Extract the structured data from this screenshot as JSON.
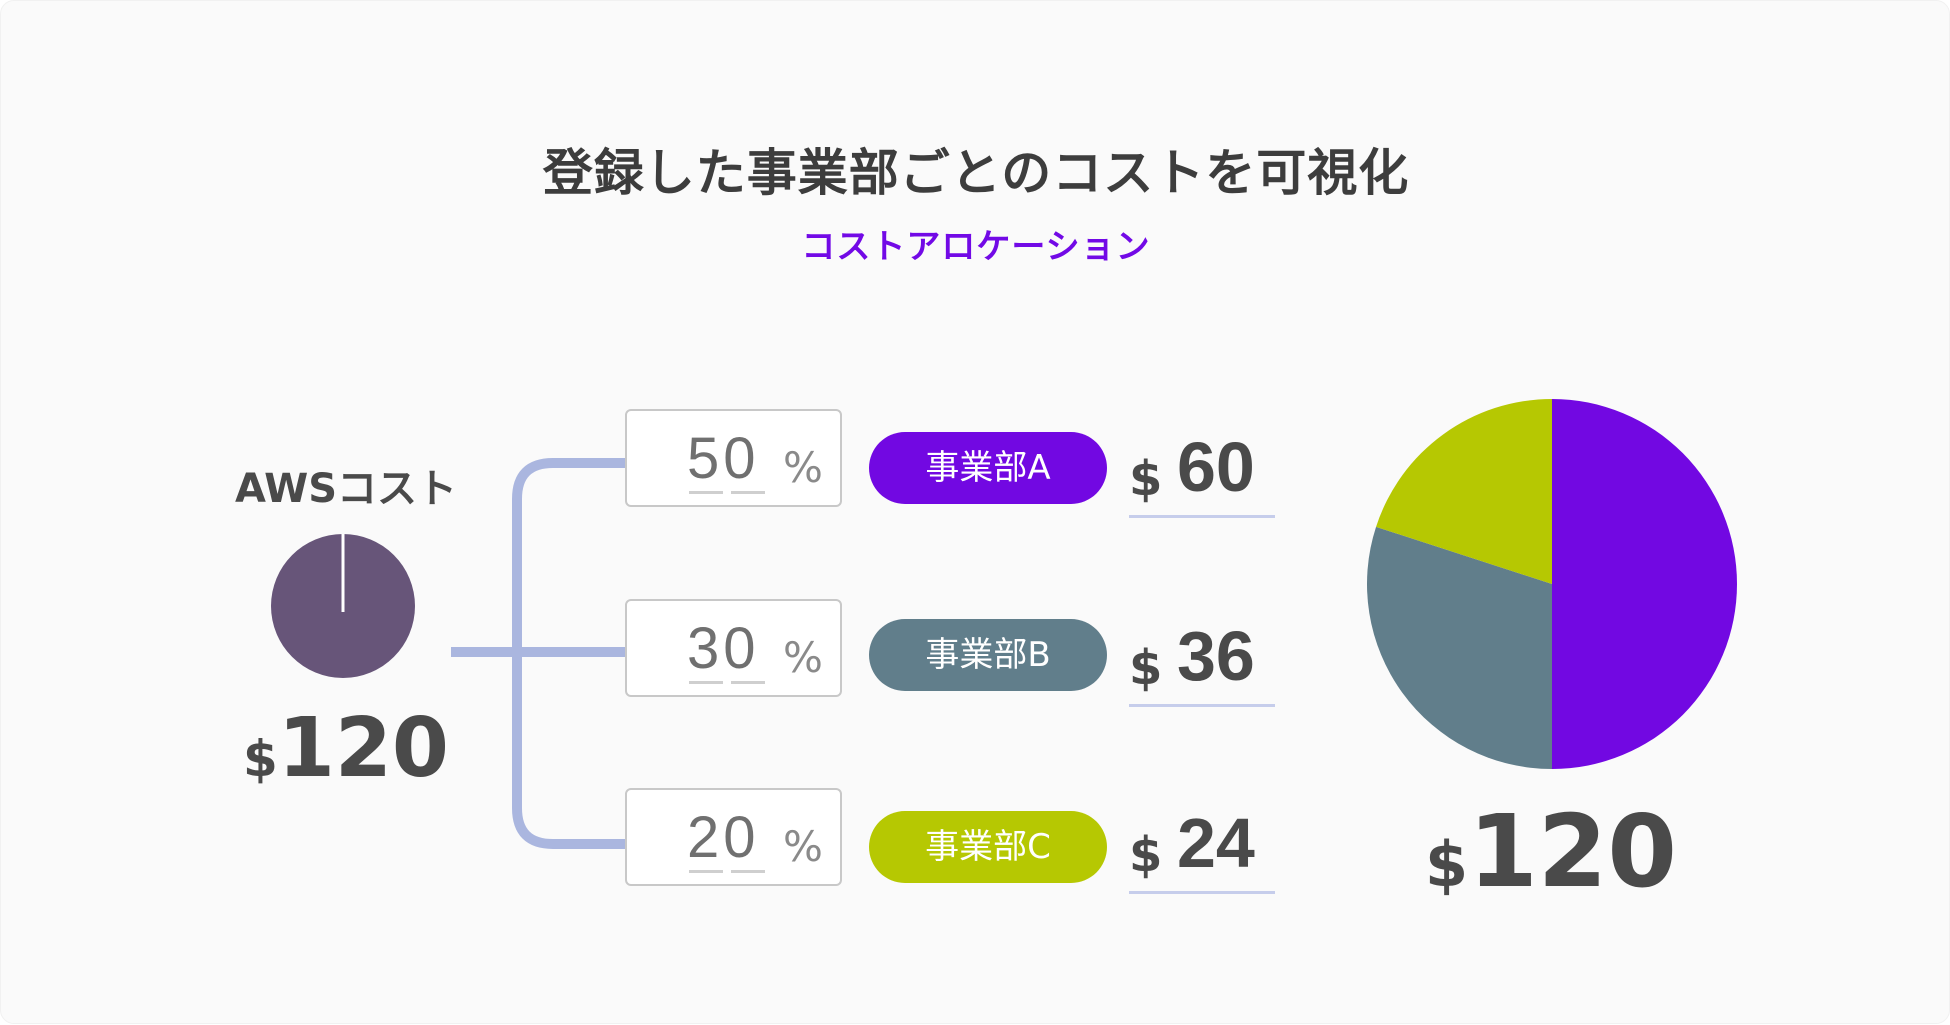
{
  "title": "登録した事業部ごとのコストを可視化",
  "subtitle": "コストアロケーション",
  "aws": {
    "label": "AWSコスト",
    "currency": "$",
    "total": "120",
    "pie_color": "#675579"
  },
  "connector_color": "#aab6df",
  "departments": [
    {
      "name": "事業部A",
      "percent": "50",
      "percent_sign": "%",
      "currency": "$",
      "amount": "60",
      "color": "#7208e2"
    },
    {
      "name": "事業部B",
      "percent": "30",
      "percent_sign": "%",
      "currency": "$",
      "amount": "36",
      "color": "#617e8b"
    },
    {
      "name": "事業部C",
      "percent": "20",
      "percent_sign": "%",
      "currency": "$",
      "amount": "24",
      "color": "#b6c802"
    }
  ],
  "result": {
    "currency": "$",
    "total": "120"
  },
  "chart_data": {
    "type": "pie",
    "categories": [
      "事業部A",
      "事業部B",
      "事業部C"
    ],
    "values": [
      50,
      30,
      20
    ],
    "colors": [
      "#7208e2",
      "#617e8b",
      "#b6c802"
    ]
  }
}
